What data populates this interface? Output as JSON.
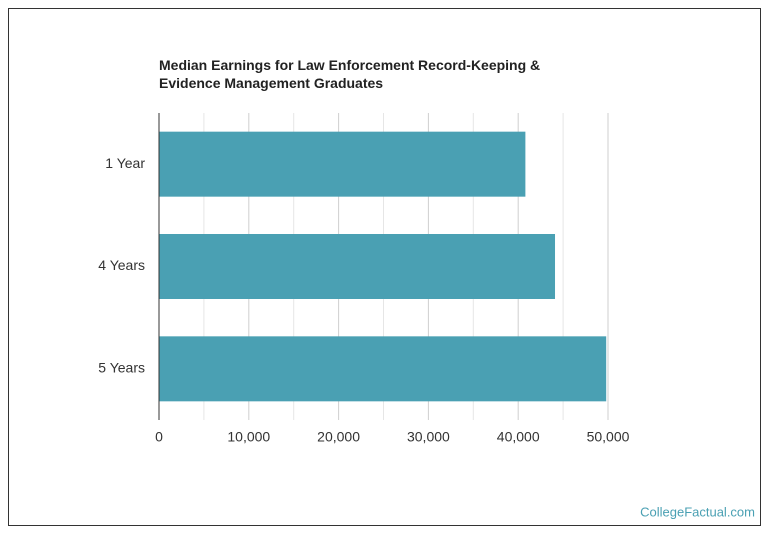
{
  "chart_data": {
    "type": "bar",
    "orientation": "horizontal",
    "title": "Median Earnings for Law Enforcement Record-Keeping & Evidence Management Graduates",
    "categories": [
      "1 Year",
      "4 Years",
      "5 Years"
    ],
    "values": [
      40800,
      44100,
      49800
    ],
    "color": "#4aa0b3",
    "xlim": [
      0,
      50000
    ],
    "xticks": [
      0,
      {
        "value": 10000,
        "label": "10,000"
      },
      {
        "value": 20000,
        "label": "20,000"
      },
      {
        "value": 30000,
        "label": "30,000"
      },
      {
        "value": 40000,
        "label": "40,000"
      },
      {
        "value": 50000,
        "label": "50,000"
      }
    ],
    "xminorticks": [
      5000,
      15000,
      25000,
      35000,
      45000
    ],
    "grid": true,
    "watermark": "CollegeFactual.com"
  }
}
